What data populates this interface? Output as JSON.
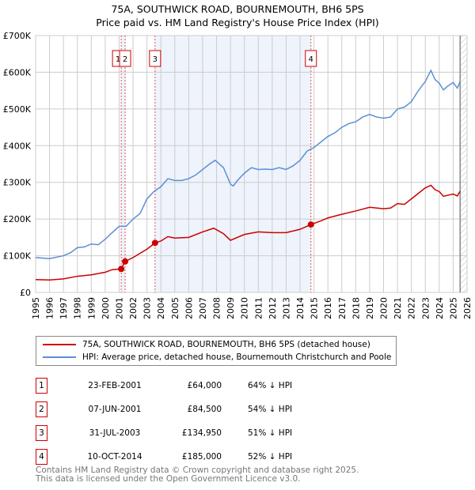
{
  "title_line1": "75A, SOUTHWICK ROAD, BOURNEMOUTH, BH6 5PS",
  "title_line2": "Price paid vs. HM Land Registry's House Price Index (HPI)",
  "chart_data": {
    "type": "line",
    "title": "75A, SOUTHWICK ROAD, BOURNEMOUTH, BH6 5PS — Price paid vs. HM Land Registry's House Price Index (HPI)",
    "xlim": [
      1995,
      2026
    ],
    "ylim": [
      0,
      700000
    ],
    "x_ticks": [
      "1995",
      "1996",
      "1997",
      "1998",
      "1999",
      "2000",
      "2001",
      "2002",
      "2003",
      "2004",
      "2005",
      "2006",
      "2007",
      "2008",
      "2009",
      "2010",
      "2011",
      "2012",
      "2013",
      "2014",
      "2015",
      "2016",
      "2017",
      "2018",
      "2019",
      "2020",
      "2021",
      "2022",
      "2023",
      "2024",
      "2025",
      "2026"
    ],
    "y_ticks": [
      {
        "v": 0,
        "l": "£0"
      },
      {
        "v": 100000,
        "l": "£100K"
      },
      {
        "v": 200000,
        "l": "£200K"
      },
      {
        "v": 300000,
        "l": "£300K"
      },
      {
        "v": 400000,
        "l": "£400K"
      },
      {
        "v": 500000,
        "l": "£500K"
      },
      {
        "v": 600000,
        "l": "£600K"
      },
      {
        "v": 700000,
        "l": "£700K"
      }
    ],
    "grid": true,
    "series": [
      {
        "name": "75A, SOUTHWICK ROAD, BOURNEMOUTH, BH6 5PS (detached house)",
        "color": "#cc0000",
        "x": [
          1995,
          1996,
          1997,
          1998,
          1999,
          2000,
          2000.5,
          2001.15,
          2001.43,
          2002,
          2003,
          2003.58,
          2004,
          2004.5,
          2005,
          2006,
          2007,
          2007.8,
          2008.5,
          2009,
          2010,
          2011,
          2012,
          2013,
          2014,
          2014.78,
          2015.5,
          2016,
          2017,
          2018,
          2019,
          2020,
          2020.5,
          2021,
          2021.5,
          2022,
          2022.5,
          2023,
          2023.4,
          2023.7,
          2024,
          2024.3,
          2025,
          2025.3,
          2025.5
        ],
        "y": [
          35000,
          34000,
          37000,
          44000,
          48000,
          55000,
          62000,
          64000,
          84500,
          95000,
          118000,
          134950,
          140000,
          152000,
          148000,
          150000,
          165000,
          175000,
          160000,
          142000,
          158000,
          165000,
          163000,
          163000,
          172000,
          185000,
          195000,
          203000,
          213000,
          222000,
          232000,
          228000,
          230000,
          242000,
          240000,
          255000,
          270000,
          285000,
          292000,
          280000,
          275000,
          262000,
          268000,
          263000,
          276000
        ]
      },
      {
        "name": "HPI: Average price, detached house, Bournemouth Christchurch and Poole",
        "color": "#5b8fd4",
        "x": [
          1995,
          1996,
          1997,
          1997.5,
          1998,
          1998.5,
          1999,
          1999.5,
          2000,
          2000.5,
          2001,
          2001.5,
          2002,
          2002.5,
          2003,
          2003.5,
          2004,
          2004.5,
          2005,
          2005.5,
          2006,
          2006.5,
          2007,
          2007.5,
          2007.9,
          2008.5,
          2009,
          2009.2,
          2009.5,
          2010,
          2010.5,
          2011,
          2011.5,
          2012,
          2012.5,
          2013,
          2013.5,
          2014,
          2014.5,
          2015,
          2015.5,
          2016,
          2016.5,
          2017,
          2017.5,
          2018,
          2018.5,
          2019,
          2019.5,
          2020,
          2020.5,
          2021,
          2021.5,
          2022,
          2022.5,
          2023,
          2023.4,
          2023.7,
          2024,
          2024.3,
          2024.6,
          2025,
          2025.3,
          2025.5
        ],
        "y": [
          95000,
          92000,
          100000,
          108000,
          122000,
          124000,
          132000,
          130000,
          145000,
          163000,
          180000,
          180000,
          200000,
          215000,
          255000,
          275000,
          288000,
          310000,
          305000,
          305000,
          310000,
          320000,
          335000,
          350000,
          360000,
          340000,
          295000,
          290000,
          305000,
          325000,
          340000,
          335000,
          336000,
          335000,
          340000,
          335000,
          345000,
          360000,
          385000,
          395000,
          410000,
          425000,
          435000,
          450000,
          460000,
          465000,
          478000,
          485000,
          478000,
          475000,
          478000,
          500000,
          505000,
          520000,
          550000,
          575000,
          605000,
          580000,
          570000,
          552000,
          562000,
          572000,
          557000,
          575000
        ]
      }
    ],
    "sales": [
      {
        "n": "1",
        "x": 2001.15,
        "date": "23-FEB-2001",
        "price": "£64,000",
        "pct": "64% ↓ HPI",
        "y": 64000
      },
      {
        "n": "2",
        "x": 2001.43,
        "date": "07-JUN-2001",
        "price": "£84,500",
        "pct": "54% ↓ HPI",
        "y": 84500
      },
      {
        "n": "3",
        "x": 2003.58,
        "date": "31-JUL-2003",
        "price": "£134,950",
        "pct": "51% ↓ HPI",
        "y": 134950
      },
      {
        "n": "4",
        "x": 2014.78,
        "date": "10-OCT-2014",
        "price": "£185,000",
        "pct": "52% ↓ HPI",
        "y": 185000
      }
    ],
    "forecast_start": 2025.5
  },
  "legend": {
    "red": "75A, SOUTHWICK ROAD, BOURNEMOUTH, BH6 5PS (detached house)",
    "blue": "HPI: Average price, detached house, Bournemouth Christchurch and Poole"
  },
  "footer": {
    "line1": "Contains HM Land Registry data © Crown copyright and database right 2025.",
    "line2": "This data is licensed under the Open Government Licence v3.0."
  }
}
